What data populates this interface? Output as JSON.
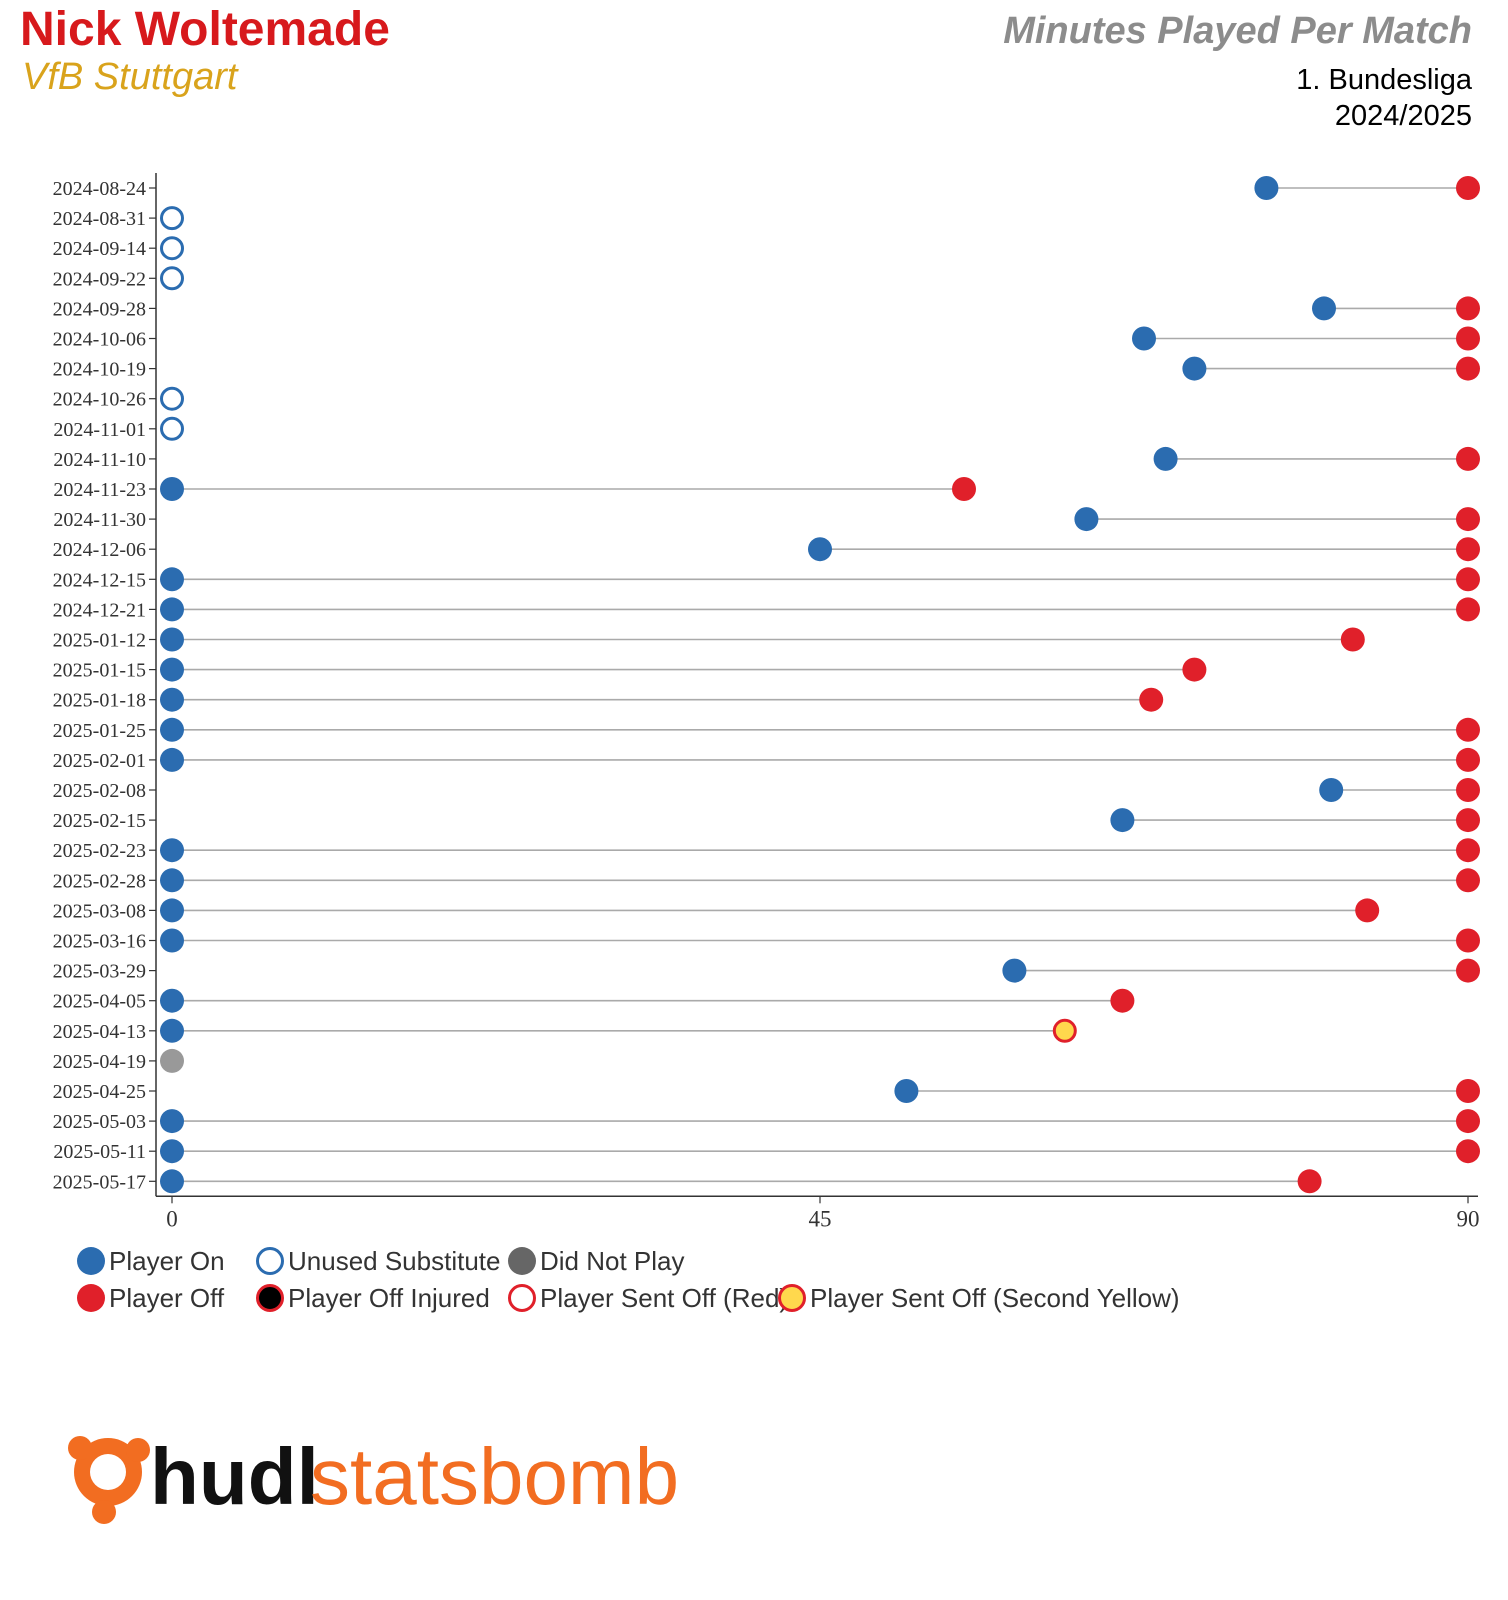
{
  "header": {
    "player": "Nick Woltemade",
    "team": "VfB Stuttgart",
    "chart_title": "Minutes Played Per Match",
    "competition": "1. Bundesliga",
    "season": "2024/2025"
  },
  "colors": {
    "player_on": "#2b6cb0",
    "player_off": "#e0202a",
    "did_not_play": "#999999",
    "second_yellow": "#ffd84d",
    "line": "#aaaaaa",
    "brand_orange": "#f26d21",
    "brand_dark": "#111111"
  },
  "chart_data": {
    "type": "dumbbell",
    "title": "Minutes Played Per Match",
    "xlabel": "",
    "ylabel": "",
    "xlim": [
      0,
      90
    ],
    "xticks": [
      "0",
      "45",
      "90"
    ],
    "matches": [
      {
        "date": "2024-08-24",
        "status": "played",
        "on": 76,
        "off": 90,
        "off_type": "off"
      },
      {
        "date": "2024-08-31",
        "status": "unused"
      },
      {
        "date": "2024-09-14",
        "status": "unused"
      },
      {
        "date": "2024-09-22",
        "status": "unused"
      },
      {
        "date": "2024-09-28",
        "status": "played",
        "on": 80,
        "off": 90,
        "off_type": "off"
      },
      {
        "date": "2024-10-06",
        "status": "played",
        "on": 67.5,
        "off": 90,
        "off_type": "off"
      },
      {
        "date": "2024-10-19",
        "status": "played",
        "on": 71,
        "off": 90,
        "off_type": "off"
      },
      {
        "date": "2024-10-26",
        "status": "unused"
      },
      {
        "date": "2024-11-01",
        "status": "unused"
      },
      {
        "date": "2024-11-10",
        "status": "played",
        "on": 69,
        "off": 90,
        "off_type": "off"
      },
      {
        "date": "2024-11-23",
        "status": "played",
        "on": 0,
        "off": 55,
        "off_type": "off"
      },
      {
        "date": "2024-11-30",
        "status": "played",
        "on": 63.5,
        "off": 90,
        "off_type": "off"
      },
      {
        "date": "2024-12-06",
        "status": "played",
        "on": 45,
        "off": 90,
        "off_type": "off"
      },
      {
        "date": "2024-12-15",
        "status": "played",
        "on": 0,
        "off": 90,
        "off_type": "off"
      },
      {
        "date": "2024-12-21",
        "status": "played",
        "on": 0,
        "off": 90,
        "off_type": "off"
      },
      {
        "date": "2025-01-12",
        "status": "played",
        "on": 0,
        "off": 82,
        "off_type": "off"
      },
      {
        "date": "2025-01-15",
        "status": "played",
        "on": 0,
        "off": 71,
        "off_type": "off"
      },
      {
        "date": "2025-01-18",
        "status": "played",
        "on": 0,
        "off": 68,
        "off_type": "off"
      },
      {
        "date": "2025-01-25",
        "status": "played",
        "on": 0,
        "off": 90,
        "off_type": "off"
      },
      {
        "date": "2025-02-01",
        "status": "played",
        "on": 0,
        "off": 90,
        "off_type": "off"
      },
      {
        "date": "2025-02-08",
        "status": "played",
        "on": 80.5,
        "off": 90,
        "off_type": "off"
      },
      {
        "date": "2025-02-15",
        "status": "played",
        "on": 66,
        "off": 90,
        "off_type": "off"
      },
      {
        "date": "2025-02-23",
        "status": "played",
        "on": 0,
        "off": 90,
        "off_type": "off"
      },
      {
        "date": "2025-02-28",
        "status": "played",
        "on": 0,
        "off": 90,
        "off_type": "off"
      },
      {
        "date": "2025-03-08",
        "status": "played",
        "on": 0,
        "off": 83,
        "off_type": "off"
      },
      {
        "date": "2025-03-16",
        "status": "played",
        "on": 0,
        "off": 90,
        "off_type": "off"
      },
      {
        "date": "2025-03-29",
        "status": "played",
        "on": 58.5,
        "off": 90,
        "off_type": "off"
      },
      {
        "date": "2025-04-05",
        "status": "played",
        "on": 0,
        "off": 66,
        "off_type": "off"
      },
      {
        "date": "2025-04-13",
        "status": "played",
        "on": 0,
        "off": 62,
        "off_type": "second_yellow"
      },
      {
        "date": "2025-04-19",
        "status": "did_not_play"
      },
      {
        "date": "2025-04-25",
        "status": "played",
        "on": 51,
        "off": 90,
        "off_type": "off"
      },
      {
        "date": "2025-05-03",
        "status": "played",
        "on": 0,
        "off": 90,
        "off_type": "off"
      },
      {
        "date": "2025-05-11",
        "status": "played",
        "on": 0,
        "off": 90,
        "off_type": "off"
      },
      {
        "date": "2025-05-17",
        "status": "played",
        "on": 0,
        "off": 79,
        "off_type": "off"
      }
    ],
    "legend": [
      {
        "key": "player_on",
        "label": "Player On"
      },
      {
        "key": "unused",
        "label": "Unused Substitute"
      },
      {
        "key": "did_not_play",
        "label": "Did Not Play"
      },
      {
        "key": "player_off",
        "label": "Player Off"
      },
      {
        "key": "injured",
        "label": "Player Off Injured"
      },
      {
        "key": "red",
        "label": "Player Sent Off (Red)"
      },
      {
        "key": "second_yellow",
        "label": "Player Sent Off (Second Yellow)"
      }
    ]
  },
  "brand": {
    "part1": "hudl",
    "part2": "statsbomb"
  }
}
